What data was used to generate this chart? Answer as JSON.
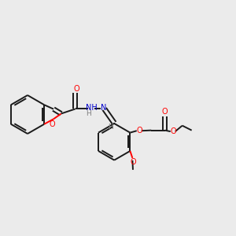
{
  "background_color": "#ebebeb",
  "bond_color": "#1a1a1a",
  "o_color": "#ff0000",
  "n_color": "#0000cc",
  "h_color": "#808080",
  "lw": 1.4,
  "dbg": 0.012,
  "xlim": [
    0.0,
    1.0
  ],
  "ylim": [
    0.25,
    0.85
  ]
}
